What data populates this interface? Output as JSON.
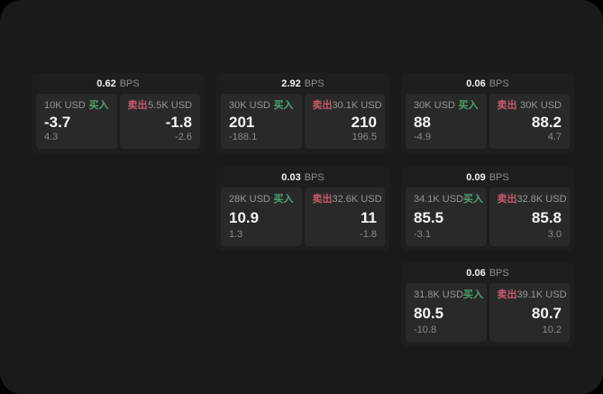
{
  "labels": {
    "bps": "BPS",
    "buy": "买入",
    "sell": "卖出"
  },
  "colors": {
    "buy": "#4da373",
    "sell": "#c75a6e",
    "page_bg": "#1a1a1a",
    "card_bg": "#1e1e1e",
    "panel_bg": "#292929"
  },
  "cards": [
    {
      "bps": "0.62",
      "buy": {
        "amount": "10K USD",
        "price": "-3.7",
        "delta": "4.3"
      },
      "sell": {
        "amount": "5.5K USD",
        "price": "-1.8",
        "delta": "-2.6"
      }
    },
    {
      "bps": "2.92",
      "buy": {
        "amount": "30K USD",
        "price": "201",
        "delta": "-188.1"
      },
      "sell": {
        "amount": "30.1K USD",
        "price": "210",
        "delta": "196.5"
      }
    },
    {
      "bps": "0.06",
      "buy": {
        "amount": "30K USD",
        "price": "88",
        "delta": "-4.9"
      },
      "sell": {
        "amount": "30K USD",
        "price": "88.2",
        "delta": "4.7"
      }
    },
    {
      "bps": "0.03",
      "buy": {
        "amount": "28K USD",
        "price": "10.9",
        "delta": "1.3"
      },
      "sell": {
        "amount": "32.6K USD",
        "price": "11",
        "delta": "-1.8"
      }
    },
    {
      "bps": "0.09",
      "buy": {
        "amount": "34.1K USD",
        "price": "85.5",
        "delta": "-3.1"
      },
      "sell": {
        "amount": "32.8K USD",
        "price": "85.8",
        "delta": "3.0"
      }
    },
    {
      "bps": "0.06",
      "buy": {
        "amount": "31.8K USD",
        "price": "80.5",
        "delta": "-10.8"
      },
      "sell": {
        "amount": "39.1K USD",
        "price": "80.7",
        "delta": "10.2"
      }
    }
  ]
}
